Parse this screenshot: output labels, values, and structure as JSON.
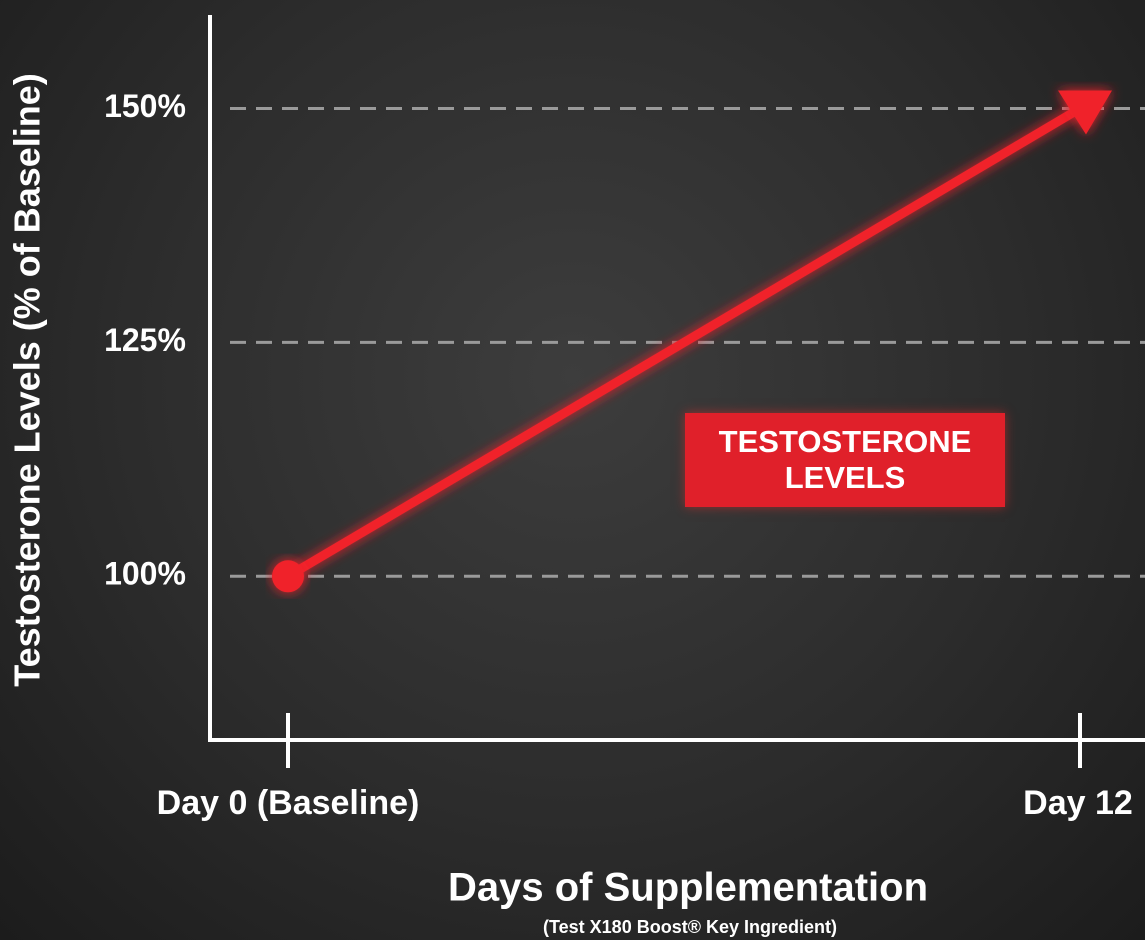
{
  "chart_data": {
    "type": "line",
    "categories": [
      "Day 0 (Baseline)",
      "Day 12"
    ],
    "series": [
      {
        "name": "Testosterone Levels",
        "color": "#f0212c",
        "values": [
          100,
          150
        ]
      }
    ],
    "ylim": [
      82.5,
      160
    ],
    "yticks": [
      {
        "value": 100,
        "label": "100%"
      },
      {
        "value": 125,
        "label": "125%"
      },
      {
        "value": 150,
        "label": "150%"
      }
    ],
    "grid": true,
    "y_label": "Testosterone Levels (% of Baseline)",
    "x_label": "Days of Supplementation",
    "subtitle": "(Test X180 Boost® Key Ingredient)",
    "annotation": "TESTOSTERONE LEVELS"
  }
}
